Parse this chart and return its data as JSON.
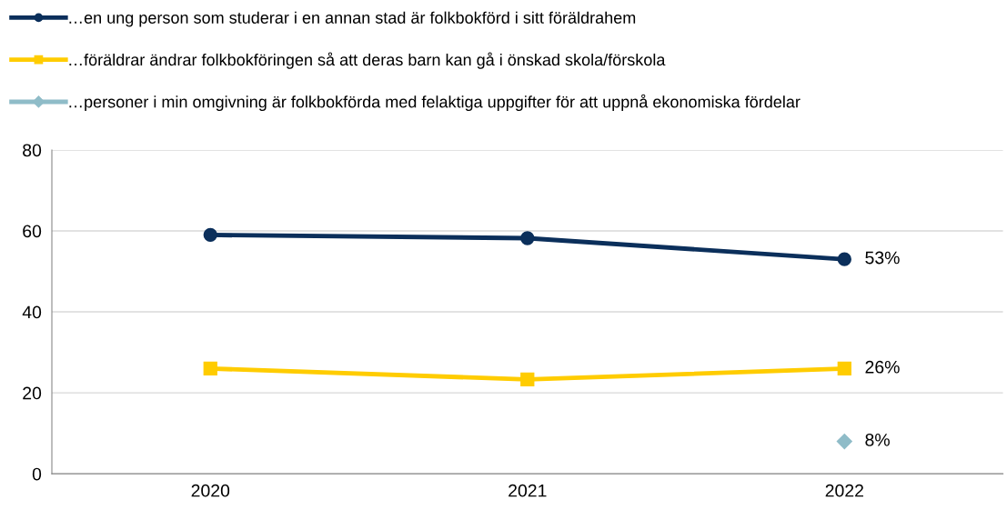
{
  "chart_data": {
    "type": "line",
    "categories": [
      "2020",
      "2021",
      "2022"
    ],
    "series": [
      {
        "name": "…en ung person som studerar i en annan stad är folkbokförd i sitt föräldrahem",
        "color": "#0b2f5b",
        "values": [
          59,
          58.2,
          53
        ],
        "value_labels": [
          null,
          null,
          "53%"
        ],
        "marker": "circle"
      },
      {
        "name": "…föräldrar ändrar folkbokföringen så att deras barn kan gå i önskad skola/förskola",
        "color": "#ffcc00",
        "values": [
          26,
          23.3,
          26
        ],
        "value_labels": [
          null,
          null,
          "26%"
        ],
        "marker": "square"
      },
      {
        "name": "…personer i min omgivning är folkbokförda med felaktiga uppgifter för att uppnå ekonomiska fördelar",
        "color": "#8fbcc8",
        "values": [
          null,
          null,
          8
        ],
        "value_labels": [
          null,
          null,
          "8%"
        ],
        "marker": "diamond"
      }
    ],
    "ylim": [
      0,
      80
    ],
    "yticks": [
      0,
      20,
      40,
      60,
      80
    ],
    "grid": "y",
    "legend": "top left"
  }
}
